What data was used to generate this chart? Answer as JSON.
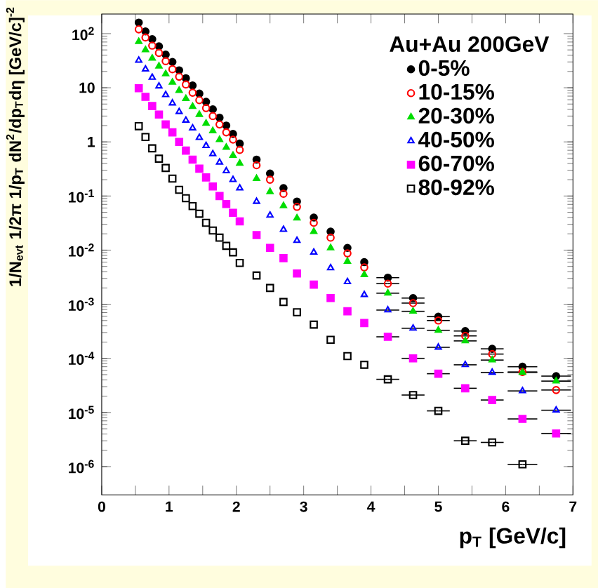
{
  "chart_data": {
    "type": "scatter",
    "legend_title": "Au+Au 200GeV",
    "xlabel": "p$_{T}$ [GeV/c]",
    "ylabel": "1/N$_{evt}$ 1/2π 1/p$_{T}$ dN$^{2}$/dp$_{T}$dη [GeV/c]$^{-2}$",
    "log": "y",
    "legend": "top right",
    "xlim": [
      0,
      7
    ],
    "ylim": [
      3e-07,
      230
    ],
    "xticks": [
      0,
      {
        "value": 0.5,
        "label": null
      },
      1,
      {
        "value": 1.5,
        "label": null
      },
      2,
      {
        "value": 2.5,
        "label": null
      },
      3,
      {
        "value": 3.5,
        "label": null
      },
      4,
      {
        "value": 4.5,
        "label": null
      },
      5,
      {
        "value": 5.5,
        "label": null
      },
      6,
      {
        "value": 6.5,
        "label": null
      },
      7
    ],
    "yticks": [
      {
        "value": 1e-06,
        "label": "10$^{-6}$"
      },
      {
        "value": 1e-05,
        "label": "10$^{-5}$"
      },
      {
        "value": 0.0001,
        "label": "10$^{-4}$"
      },
      {
        "value": 0.001,
        "label": "10$^{-3}$"
      },
      {
        "value": 0.01,
        "label": "10$^{-2}$"
      },
      {
        "value": 0.1,
        "label": "10$^{-1}$"
      },
      1,
      10,
      {
        "value": 100,
        "label": "10$^{2}$"
      }
    ],
    "x": [
      0.55,
      0.65,
      0.75,
      0.85,
      0.95,
      1.05,
      1.15,
      1.25,
      1.35,
      1.45,
      1.55,
      1.65,
      1.75,
      1.85,
      1.95,
      2.05,
      2.3,
      2.5,
      2.7,
      2.9,
      3.15,
      3.4,
      3.65,
      3.9,
      4.25,
      4.625,
      5.0,
      5.4,
      5.8,
      6.25,
      6.75
    ],
    "series": [
      {
        "name": "0-5%",
        "color": "#000000",
        "marker": "circle",
        "values": [
          160,
          110,
          79,
          58,
          41,
          30,
          21,
          15,
          11,
          7.8,
          5.5,
          4.0,
          2.8,
          2.0,
          1.4,
          0.93,
          0.47,
          0.26,
          0.14,
          0.079,
          0.04,
          0.022,
          0.011,
          0.006,
          0.0031,
          0.0013,
          0.00059,
          0.00032,
          0.00015,
          7e-05,
          4.7e-05
        ],
        "xerrors": [
          null,
          null,
          null,
          null,
          null,
          null,
          null,
          null,
          null,
          null,
          null,
          null,
          null,
          null,
          null,
          null,
          null,
          null,
          null,
          null,
          null,
          null,
          null,
          null,
          0.17,
          0.17,
          0.17,
          0.17,
          0.17,
          0.22,
          0.22
        ]
      },
      {
        "name": "10-15%",
        "color": "#ff0000",
        "marker": "circle-open",
        "values": [
          120,
          85,
          60,
          44,
          31,
          22,
          16,
          11.5,
          8.1,
          5.9,
          4.2,
          3.0,
          2.1,
          1.5,
          1.1,
          0.71,
          0.37,
          0.2,
          0.11,
          0.063,
          0.032,
          0.017,
          0.0087,
          0.0048,
          0.0024,
          0.00105,
          0.0005,
          0.00026,
          0.00012,
          5.6e-05,
          2.6e-05
        ],
        "xerrors": [
          null,
          null,
          null,
          null,
          null,
          null,
          null,
          null,
          null,
          null,
          null,
          null,
          null,
          null,
          null,
          null,
          null,
          null,
          null,
          null,
          null,
          null,
          null,
          null,
          0.17,
          0.17,
          0.17,
          0.17,
          0.17,
          0.22,
          0.22
        ]
      },
      {
        "name": "20-30%",
        "color": "#00dd00",
        "marker": "triangle",
        "values": [
          71,
          50,
          35,
          25,
          18,
          12.6,
          8.9,
          6.3,
          4.5,
          3.2,
          2.2,
          1.6,
          1.1,
          0.79,
          0.56,
          0.4,
          0.21,
          0.12,
          0.066,
          0.039,
          0.022,
          0.011,
          0.0062,
          0.0035,
          0.0016,
          0.00074,
          0.00033,
          0.00021,
          9.3e-05,
          5.5e-05,
          3.8e-05
        ],
        "xerrors": [
          null,
          null,
          null,
          null,
          null,
          null,
          null,
          null,
          null,
          null,
          null,
          null,
          null,
          null,
          null,
          null,
          null,
          null,
          null,
          null,
          null,
          null,
          null,
          null,
          0.17,
          0.17,
          0.17,
          0.17,
          0.17,
          0.22,
          0.22
        ]
      },
      {
        "name": "40-50%",
        "color": "#0000ff",
        "marker": "triangle-open",
        "values": [
          32,
          22,
          15.5,
          10.7,
          7.4,
          5.2,
          3.6,
          2.5,
          1.8,
          1.2,
          0.85,
          0.6,
          0.42,
          0.29,
          0.2,
          0.14,
          0.079,
          0.044,
          0.024,
          0.015,
          0.0091,
          0.0047,
          0.0026,
          0.0015,
          0.00078,
          0.00036,
          0.00016,
          7.6e-05,
          5.5e-05,
          2.5e-05,
          1.1e-05
        ],
        "xerrors": [
          null,
          null,
          null,
          null,
          null,
          null,
          null,
          null,
          null,
          null,
          null,
          null,
          null,
          null,
          null,
          null,
          null,
          null,
          null,
          null,
          null,
          null,
          null,
          null,
          0.17,
          0.17,
          0.17,
          0.17,
          0.17,
          0.22,
          0.22
        ]
      },
      {
        "name": "60-70%",
        "color": "#ff00ff",
        "marker": "square",
        "values": [
          9.8,
          6.8,
          4.6,
          3.2,
          2.1,
          1.5,
          1.0,
          0.69,
          0.47,
          0.32,
          0.22,
          0.15,
          0.1,
          0.071,
          0.049,
          0.034,
          0.019,
          0.011,
          0.0071,
          0.0037,
          0.0023,
          0.0013,
          0.00074,
          0.00045,
          0.00025,
          0.0001,
          5.2e-05,
          2.8e-05,
          1.7e-05,
          7.6e-06,
          4.1e-06
        ],
        "xerrors": [
          null,
          null,
          null,
          null,
          null,
          null,
          null,
          null,
          null,
          null,
          null,
          null,
          null,
          null,
          null,
          null,
          null,
          null,
          null,
          null,
          null,
          null,
          null,
          null,
          0.17,
          0.17,
          0.17,
          0.17,
          0.17,
          0.22,
          0.22
        ]
      },
      {
        "name": "80-92%",
        "color": "#000000",
        "marker": "square-open",
        "values": [
          1.95,
          1.23,
          0.76,
          0.49,
          0.33,
          0.21,
          0.13,
          0.091,
          0.065,
          0.047,
          0.032,
          0.023,
          0.017,
          0.012,
          0.0091,
          0.0058,
          0.0034,
          0.002,
          0.0011,
          0.00071,
          0.00042,
          0.00022,
          0.00011,
          7.6e-05,
          4.1e-05,
          2.1e-05,
          1.07e-05,
          3e-06,
          2.8e-06,
          1.1e-06,
          null
        ],
        "xerrors": [
          null,
          null,
          null,
          null,
          null,
          null,
          null,
          null,
          null,
          null,
          null,
          null,
          null,
          null,
          null,
          null,
          null,
          null,
          null,
          null,
          null,
          null,
          null,
          null,
          0.17,
          0.17,
          0.17,
          0.17,
          0.17,
          0.22,
          null
        ]
      }
    ]
  }
}
